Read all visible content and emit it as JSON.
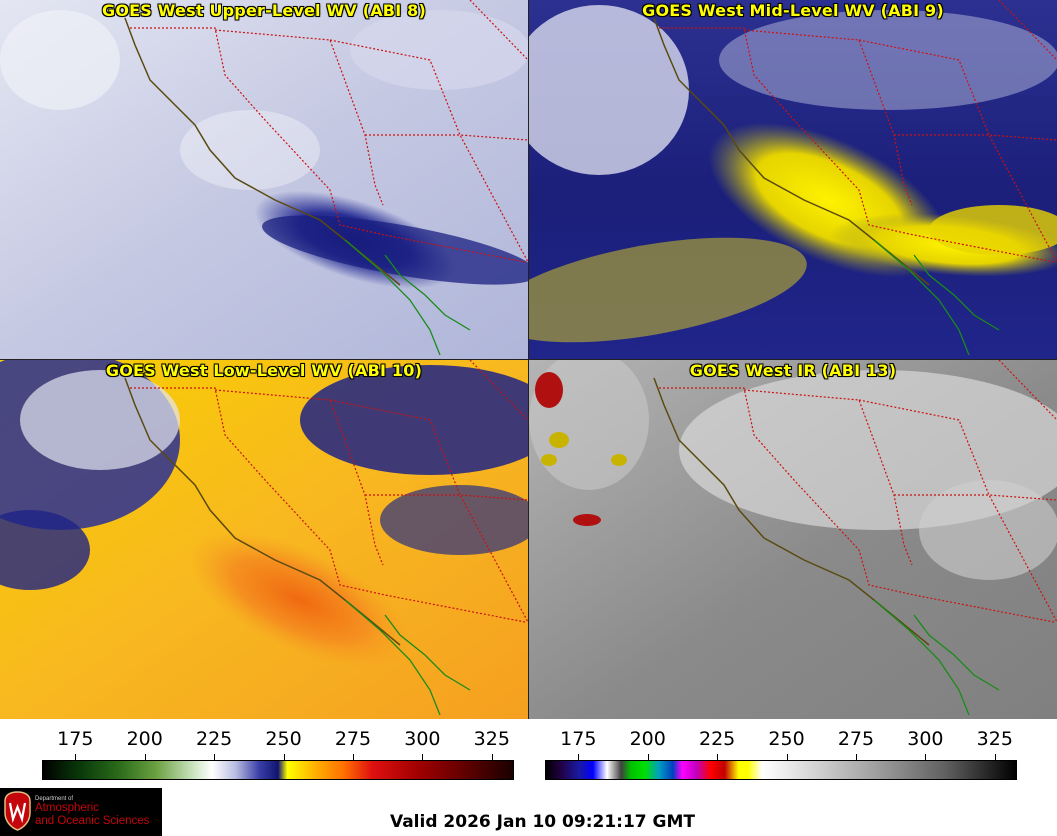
{
  "panels": [
    {
      "title": "GOES West Upper-Level WV (ABI 8)",
      "palette": "wv",
      "dominant_color": "#c8cce6"
    },
    {
      "title": "GOES West Mid-Level WV (ABI 9)",
      "palette": "wv",
      "dominant_color": "#1a1f86"
    },
    {
      "title": "GOES West Low-Level WV (ABI 10)",
      "palette": "wv",
      "dominant_color": "#f6c800"
    },
    {
      "title": "GOES West IR (ABI 13)",
      "palette": "ir",
      "dominant_color": "#8a8a8a"
    }
  ],
  "colorbars": [
    {
      "name": "water-vapor",
      "ticks": [
        "175",
        "200",
        "225",
        "250",
        "275",
        "300",
        "325"
      ],
      "range": [
        163,
        333
      ]
    },
    {
      "name": "infrared",
      "ticks": [
        "175",
        "200",
        "225",
        "250",
        "275",
        "300",
        "325"
      ],
      "range": [
        163,
        333
      ]
    }
  ],
  "logo": {
    "line1": "Department of",
    "line2": "Atmospheric",
    "line3": "and Oceanic Sciences"
  },
  "valid_text": "Valid 2026 Jan 10 09:21:17 GMT",
  "colors": {
    "state_borders": "#cc1111",
    "coastline": "#5a4a10",
    "mexico_coast": "#1a8a1a",
    "title_text": "#ffff00"
  }
}
